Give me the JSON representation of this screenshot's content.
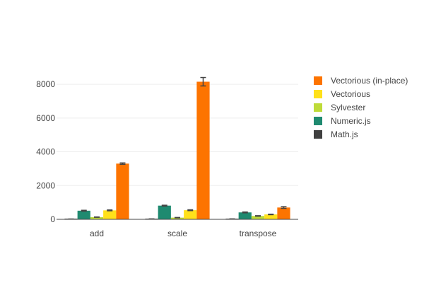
{
  "chart_data": {
    "type": "bar",
    "categories": [
      "add",
      "scale",
      "transpose"
    ],
    "ylim": [
      0,
      8800
    ],
    "yticks": [
      0,
      2000,
      4000,
      6000,
      8000
    ],
    "ytick_labels": [
      "0",
      "2000",
      "4000",
      "6000",
      "8000"
    ],
    "grid": true,
    "legend_position": "right",
    "series": [
      {
        "name": "Math.js",
        "color": "#404040",
        "values": [
          15,
          20,
          20
        ],
        "errors": [
          5,
          5,
          5
        ]
      },
      {
        "name": "Numeric.js",
        "color": "#1f8a70",
        "values": [
          510,
          810,
          410
        ],
        "errors": [
          25,
          25,
          25
        ]
      },
      {
        "name": "Sylvester",
        "color": "#bedb39",
        "values": [
          130,
          100,
          200
        ],
        "errors": [
          10,
          10,
          15
        ]
      },
      {
        "name": "Vectorious",
        "color": "#ffe11a",
        "values": [
          530,
          540,
          290
        ],
        "errors": [
          25,
          25,
          15
        ]
      },
      {
        "name": "Vectorious (in-place)",
        "color": "#fd7400",
        "values": [
          3300,
          8150,
          700
        ],
        "errors": [
          40,
          250,
          50
        ]
      }
    ],
    "legend_order": [
      "Vectorious (in-place)",
      "Vectorious",
      "Sylvester",
      "Numeric.js",
      "Math.js"
    ]
  }
}
